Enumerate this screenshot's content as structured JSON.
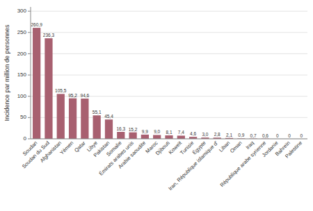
{
  "chart_data": {
    "type": "bar",
    "categories": [
      "Soudan",
      "Soudan du Sud",
      "Afghanistan",
      "Yémen",
      "Qatar",
      "Libye",
      "Pakistan",
      "Somalie",
      "Émirats arabes unis",
      "Arabie saoudite",
      "Maroc",
      "Djibouti",
      "Koweït",
      "Tunisie",
      "Égypte",
      "Iran, République islamique d'",
      "Liban",
      "Oman",
      "Iraq",
      "République arabe syrienne",
      "Jordanie",
      "Bahreïn",
      "Palestine"
    ],
    "values": [
      260.9,
      236.3,
      105.5,
      95.2,
      94.6,
      55.1,
      45.4,
      16.3,
      15.2,
      9.9,
      9.0,
      8.1,
      7.4,
      4.6,
      3.0,
      2.8,
      2.1,
      0.9,
      0.7,
      0.6,
      0,
      0,
      0
    ],
    "value_labels": [
      "260,9",
      "236,3",
      "105,5",
      "95,2",
      "94,6",
      "55,1",
      "45,4",
      "16,3",
      "15,2",
      "9,9",
      "9,0",
      "8,1",
      "7,4",
      "4,6",
      "3,0",
      "2,8",
      "2,1",
      "0,9",
      "0,7",
      "0,6",
      "0",
      "0",
      "0"
    ],
    "color": "#a86070",
    "ylabel": "Incidence par million de personnes",
    "ylim": [
      0,
      310
    ],
    "yticks": [
      0,
      50,
      100,
      150,
      200,
      250,
      300
    ],
    "grid": true,
    "data_labels": true
  }
}
